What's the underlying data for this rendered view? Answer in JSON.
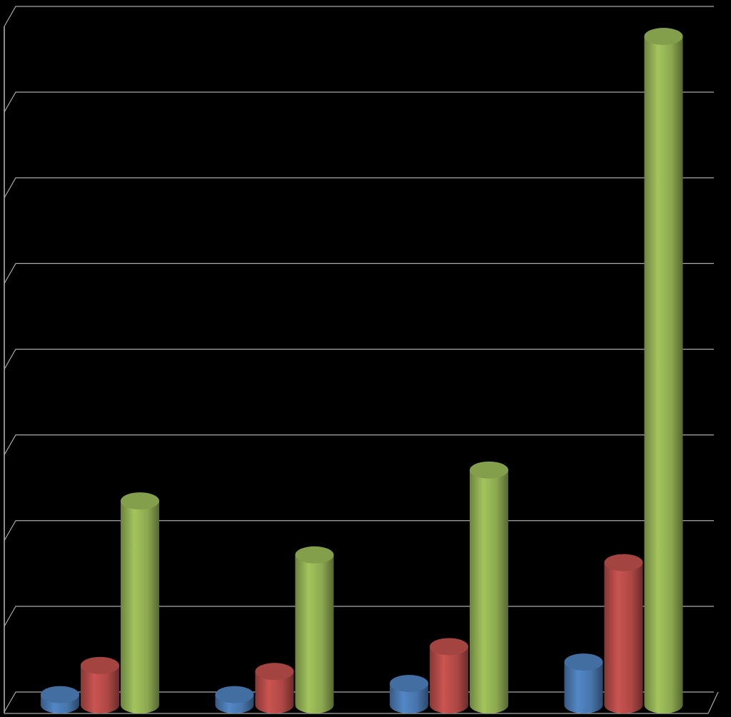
{
  "chart_data": {
    "type": "bar",
    "categories": [
      null,
      null,
      null,
      null
    ],
    "series": [
      {
        "color": "#4f81bd",
        "values": [
          0.12,
          0.12,
          0.25,
          0.5
        ]
      },
      {
        "color": "#c0504d",
        "values": [
          0.46,
          0.39,
          0.68,
          1.66
        ]
      },
      {
        "color": "#9bbb59",
        "values": [
          2.38,
          1.75,
          2.74,
          7.8
        ]
      }
    ],
    "ylim": [
      0,
      8
    ],
    "yticks": [
      0,
      1,
      2,
      3,
      4,
      5,
      6,
      7,
      8
    ],
    "grid": true
  }
}
